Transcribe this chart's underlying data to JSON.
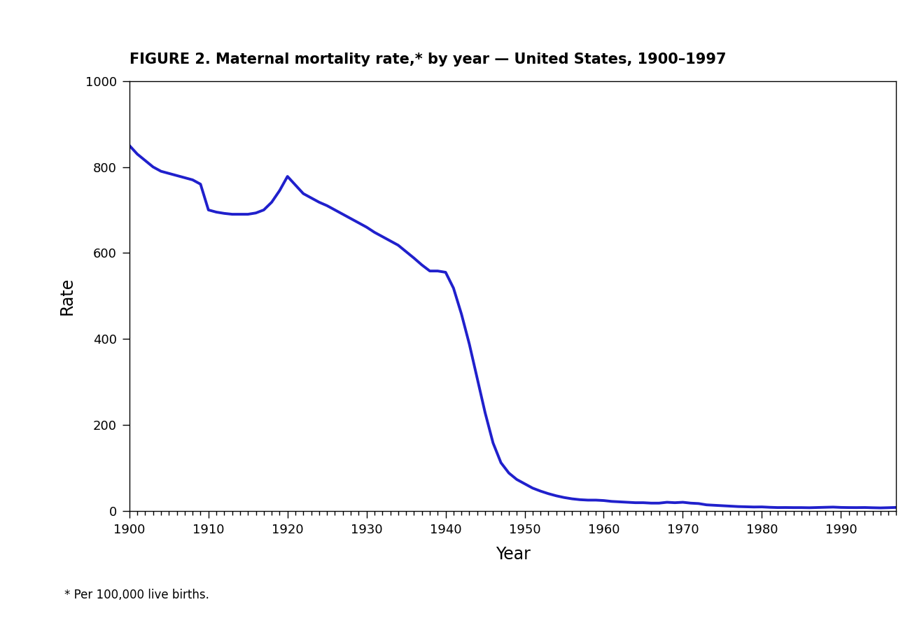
{
  "title": "FIGURE 2. Maternal mortality rate,* by year — United States, 1900–1997",
  "xlabel": "Year",
  "ylabel": "Rate",
  "footnote": "* Per 100,000 live births.",
  "line_color": "#2020CC",
  "line_width": 2.8,
  "background_color": "#ffffff",
  "xlim": [
    1900,
    1997
  ],
  "ylim": [
    0,
    1000
  ],
  "yticks": [
    0,
    200,
    400,
    600,
    800,
    1000
  ],
  "xticks": [
    1900,
    1910,
    1920,
    1930,
    1940,
    1950,
    1960,
    1970,
    1980,
    1990
  ],
  "years": [
    1900,
    1901,
    1902,
    1903,
    1904,
    1905,
    1906,
    1907,
    1908,
    1909,
    1910,
    1911,
    1912,
    1913,
    1914,
    1915,
    1916,
    1917,
    1918,
    1919,
    1920,
    1921,
    1922,
    1923,
    1924,
    1925,
    1926,
    1927,
    1928,
    1929,
    1930,
    1931,
    1932,
    1933,
    1934,
    1935,
    1936,
    1937,
    1938,
    1939,
    1940,
    1941,
    1942,
    1943,
    1944,
    1945,
    1946,
    1947,
    1948,
    1949,
    1950,
    1951,
    1952,
    1953,
    1954,
    1955,
    1956,
    1957,
    1958,
    1959,
    1960,
    1961,
    1962,
    1963,
    1964,
    1965,
    1966,
    1967,
    1968,
    1969,
    1970,
    1971,
    1972,
    1973,
    1974,
    1975,
    1976,
    1977,
    1978,
    1979,
    1980,
    1981,
    1982,
    1983,
    1984,
    1985,
    1986,
    1987,
    1988,
    1989,
    1990,
    1991,
    1992,
    1993,
    1994,
    1995,
    1996,
    1997
  ],
  "rates": [
    850,
    830,
    815,
    800,
    790,
    785,
    780,
    775,
    770,
    760,
    700,
    695,
    692,
    690,
    690,
    690,
    693,
    700,
    718,
    745,
    778,
    758,
    738,
    728,
    718,
    710,
    700,
    690,
    680,
    670,
    660,
    648,
    638,
    628,
    618,
    603,
    588,
    572,
    558,
    558,
    555,
    518,
    458,
    388,
    308,
    228,
    158,
    112,
    88,
    73,
    63,
    53,
    46,
    40,
    35,
    31,
    28,
    26,
    25,
    25,
    24,
    22,
    21,
    20,
    19,
    19,
    18,
    18,
    20,
    19,
    20,
    18,
    17,
    14,
    13,
    12,
    11,
    10,
    9.5,
    9.0,
    9.2,
    8.3,
    7.7,
    7.8,
    7.6,
    7.6,
    7.3,
    7.8,
    8.3,
    8.8,
    8.0,
    7.7,
    7.6,
    7.8,
    7.3,
    6.9,
    7.4,
    8.0
  ]
}
